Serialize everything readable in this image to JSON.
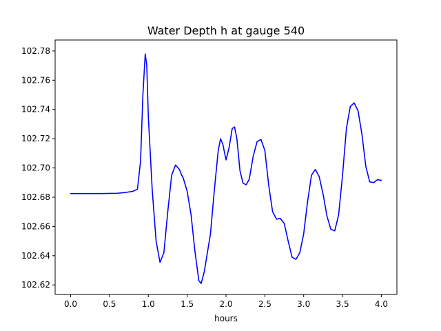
{
  "chart_data": {
    "type": "line",
    "title": "Water Depth h at gauge 540",
    "xlabel": "hours",
    "ylabel": "",
    "xlim": [
      -0.2,
      4.2
    ],
    "ylim": [
      102.6135,
      102.7875
    ],
    "x_ticks": [
      0.0,
      0.5,
      1.0,
      1.5,
      2.0,
      2.5,
      3.0,
      3.5,
      4.0
    ],
    "x_tick_labels": [
      "0.0",
      "0.5",
      "1.0",
      "1.5",
      "2.0",
      "2.5",
      "3.0",
      "3.5",
      "4.0"
    ],
    "y_ticks": [
      102.62,
      102.64,
      102.66,
      102.68,
      102.7,
      102.72,
      102.74,
      102.76,
      102.78
    ],
    "y_tick_labels": [
      "102.62",
      "102.64",
      "102.66",
      "102.68",
      "102.70",
      "102.72",
      "102.74",
      "102.76",
      "102.78"
    ],
    "grid": false,
    "series": [
      {
        "color": "#0000ff",
        "x": [
          0.0,
          0.2,
          0.4,
          0.6,
          0.7,
          0.8,
          0.86,
          0.9,
          0.93,
          0.96,
          0.98,
          1.0,
          1.05,
          1.1,
          1.15,
          1.2,
          1.25,
          1.3,
          1.35,
          1.4,
          1.43,
          1.45,
          1.5,
          1.55,
          1.6,
          1.65,
          1.68,
          1.72,
          1.76,
          1.8,
          1.85,
          1.9,
          1.93,
          1.96,
          2.0,
          2.04,
          2.08,
          2.11,
          2.14,
          2.18,
          2.22,
          2.26,
          2.3,
          2.35,
          2.4,
          2.45,
          2.5,
          2.55,
          2.6,
          2.65,
          2.7,
          2.75,
          2.8,
          2.85,
          2.9,
          2.95,
          3.0,
          3.05,
          3.1,
          3.15,
          3.2,
          3.25,
          3.3,
          3.35,
          3.4,
          3.45,
          3.5,
          3.55,
          3.6,
          3.65,
          3.7,
          3.75,
          3.8,
          3.85,
          3.9,
          3.95,
          4.0
        ],
        "y": [
          102.6825,
          102.6825,
          102.6825,
          102.6827,
          102.6832,
          102.684,
          102.6855,
          102.705,
          102.75,
          102.778,
          102.77,
          102.735,
          102.685,
          102.65,
          102.6355,
          102.642,
          102.67,
          102.695,
          102.702,
          102.699,
          102.695,
          102.693,
          102.684,
          102.668,
          102.643,
          102.623,
          102.621,
          102.629,
          102.642,
          102.655,
          102.685,
          102.712,
          102.72,
          102.716,
          102.7055,
          102.714,
          102.727,
          102.728,
          102.72,
          102.698,
          102.6895,
          102.6885,
          102.6925,
          102.708,
          102.718,
          102.7195,
          102.712,
          102.688,
          102.67,
          102.665,
          102.6655,
          102.662,
          102.65,
          102.639,
          102.6375,
          102.642,
          102.655,
          102.677,
          102.695,
          102.699,
          102.694,
          102.682,
          102.667,
          102.658,
          102.657,
          102.668,
          102.695,
          102.727,
          102.742,
          102.7445,
          102.739,
          102.723,
          102.701,
          102.6905,
          102.69,
          102.692,
          102.6915
        ]
      }
    ]
  }
}
